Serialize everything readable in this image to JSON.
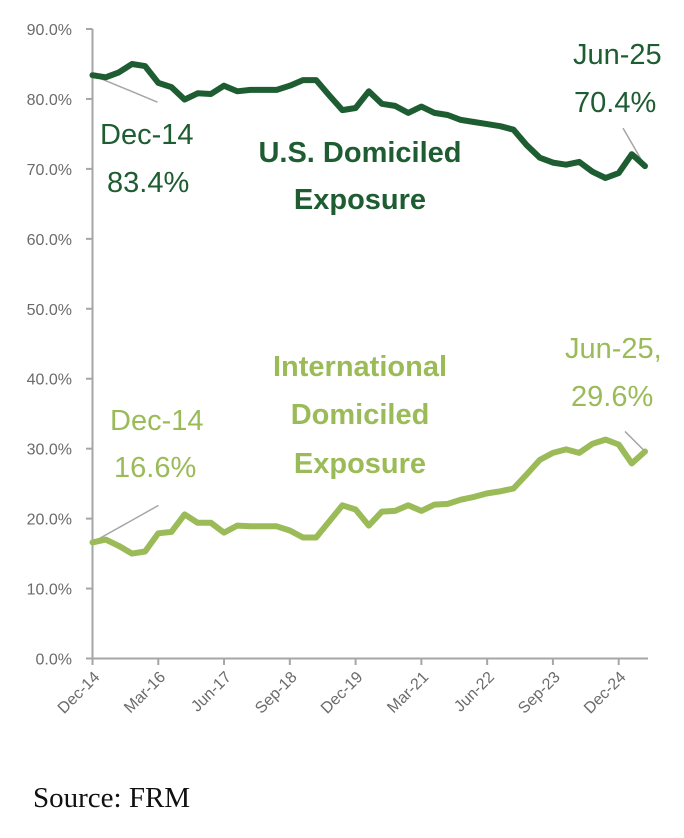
{
  "chart_data": {
    "type": "line",
    "title": "",
    "xlabel": "",
    "ylabel": "",
    "ylim": [
      0,
      90
    ],
    "yticks": [
      "0.0%",
      "10.0%",
      "20.0%",
      "30.0%",
      "40.0%",
      "50.0%",
      "60.0%",
      "70.0%",
      "80.0%",
      "90.0%"
    ],
    "x": [
      "Dec-14",
      "Mar-15",
      "Jun-15",
      "Sep-15",
      "Dec-15",
      "Mar-16",
      "Jun-16",
      "Sep-16",
      "Dec-16",
      "Mar-17",
      "Jun-17",
      "Sep-17",
      "Dec-17",
      "Mar-18",
      "Jun-18",
      "Sep-18",
      "Dec-18",
      "Mar-19",
      "Jun-19",
      "Sep-19",
      "Dec-19",
      "Mar-20",
      "Jun-20",
      "Sep-20",
      "Dec-20",
      "Mar-21",
      "Jun-21",
      "Sep-21",
      "Dec-21",
      "Mar-22",
      "Jun-22",
      "Sep-22",
      "Dec-22",
      "Mar-23",
      "Jun-23",
      "Sep-23",
      "Dec-23",
      "Mar-24",
      "Jun-24",
      "Sep-24",
      "Dec-24",
      "Mar-25",
      "Jun-25"
    ],
    "xtick_labels": [
      "Dec-14",
      "Mar-16",
      "Jun-17",
      "Sep-18",
      "Dec-19",
      "Mar-21",
      "Jun-22",
      "Sep-23",
      "Dec-24"
    ],
    "series": [
      {
        "name": "U.S. Domiciled Exposure",
        "color": "#1e5c32",
        "values": [
          83.4,
          83.1,
          83.8,
          85.0,
          84.7,
          82.3,
          81.7,
          79.9,
          80.8,
          80.7,
          81.9,
          81.1,
          81.3,
          81.3,
          81.3,
          81.9,
          82.7,
          82.7,
          80.5,
          78.4,
          78.7,
          81.1,
          79.3,
          79.0,
          78.0,
          78.9,
          78.0,
          77.7,
          77.0,
          76.7,
          76.4,
          76.1,
          75.6,
          73.4,
          71.6,
          70.9,
          70.6,
          71.0,
          69.6,
          68.7,
          69.4,
          72.1,
          70.4
        ]
      },
      {
        "name": "International Domiciled Exposure",
        "color": "#9bbb59",
        "values": [
          16.6,
          17.0,
          16.1,
          15.0,
          15.3,
          17.9,
          18.1,
          20.6,
          19.4,
          19.4,
          18.0,
          19.0,
          18.9,
          18.9,
          18.9,
          18.3,
          17.3,
          17.3,
          19.6,
          21.9,
          21.3,
          19.0,
          21.0,
          21.1,
          21.9,
          21.1,
          22.0,
          22.1,
          22.7,
          23.1,
          23.6,
          23.9,
          24.3,
          26.3,
          28.4,
          29.4,
          29.9,
          29.4,
          30.7,
          31.3,
          30.6,
          27.9,
          29.6
        ]
      }
    ],
    "annotations": [
      {
        "series": 0,
        "point": "Dec-14",
        "line1": "Dec-14",
        "line2": "83.4%"
      },
      {
        "series": 0,
        "point": "Jun-25",
        "line1": "Jun-25",
        "line2": "70.4%"
      },
      {
        "series": 1,
        "point": "Dec-14",
        "line1": "Dec-14",
        "line2": "16.6%"
      },
      {
        "series": 1,
        "point": "Jun-25",
        "line1": "Jun-25,",
        "line2": "29.6%"
      }
    ],
    "series_labels": [
      {
        "series": 0,
        "lines": [
          "U.S. Domiciled",
          "Exposure"
        ]
      },
      {
        "series": 1,
        "lines": [
          "International",
          "Domiciled",
          "Exposure"
        ]
      }
    ],
    "grid": false,
    "legend": "none"
  },
  "source": "Source: FRM"
}
